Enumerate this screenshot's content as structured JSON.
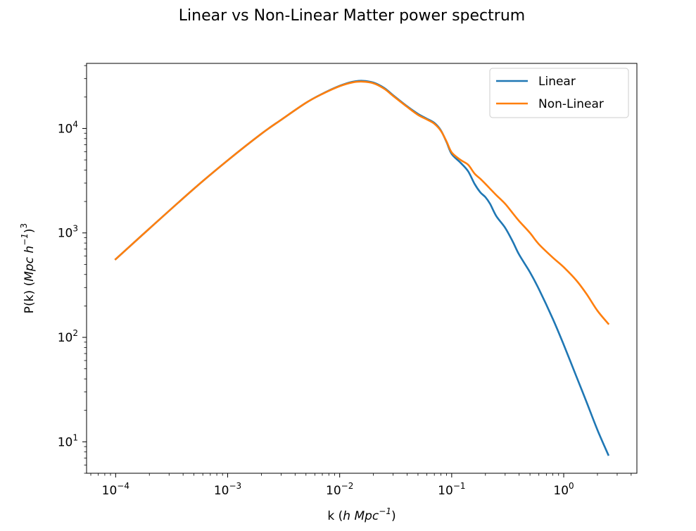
{
  "chart_data": {
    "type": "line",
    "title": "Linear vs Non-Linear Matter power spectrum",
    "xlabel": {
      "prefix": "k (",
      "var": "h Mpc",
      "sup": "−1",
      "suffix": ")"
    },
    "ylabel": {
      "prefix": "P(k) (",
      "var": "Mpc h",
      "sup1": "−1",
      "mid": ")",
      "sup2": "3"
    },
    "x_scale": "log",
    "y_scale": "log",
    "xlim": [
      5.5e-05,
      4.5
    ],
    "ylim": [
      5.0,
      42000
    ],
    "x_ticks": [
      {
        "base": "10",
        "exp": "−4",
        "value": 0.0001
      },
      {
        "base": "10",
        "exp": "−3",
        "value": 0.001
      },
      {
        "base": "10",
        "exp": "−2",
        "value": 0.01
      },
      {
        "base": "10",
        "exp": "−1",
        "value": 0.1
      },
      {
        "base": "10",
        "exp": "0",
        "value": 1
      }
    ],
    "y_ticks": [
      {
        "base": "10",
        "exp": "1",
        "value": 10
      },
      {
        "base": "10",
        "exp": "2",
        "value": 100
      },
      {
        "base": "10",
        "exp": "3",
        "value": 1000
      },
      {
        "base": "10",
        "exp": "4",
        "value": 10000
      }
    ],
    "grid": false,
    "legend_position": "top-right",
    "series": [
      {
        "name": "Linear",
        "color": "#1f77b4",
        "x": [
          0.0001,
          0.0002,
          0.0005,
          0.001,
          0.002,
          0.003,
          0.005,
          0.007,
          0.01,
          0.013,
          0.016,
          0.02,
          0.025,
          0.03,
          0.04,
          0.05,
          0.06,
          0.07,
          0.08,
          0.09,
          0.1,
          0.12,
          0.14,
          0.16,
          0.18,
          0.2,
          0.22,
          0.25,
          0.3,
          0.35,
          0.4,
          0.5,
          0.6,
          0.8,
          1.0,
          1.3,
          1.6,
          2.0,
          2.5
        ],
        "y": [
          560,
          1100,
          2650,
          4950,
          8900,
          12100,
          17600,
          21500,
          25600,
          28000,
          28600,
          27500,
          24400,
          20800,
          16300,
          13800,
          12400,
          11300,
          9600,
          7400,
          5700,
          4700,
          3900,
          2950,
          2450,
          2200,
          1900,
          1450,
          1120,
          830,
          620,
          420,
          290,
          150,
          85,
          42,
          24,
          13,
          7.5
        ]
      },
      {
        "name": "Non-Linear",
        "color": "#ff7f0e",
        "x": [
          0.0001,
          0.0002,
          0.0005,
          0.001,
          0.002,
          0.003,
          0.005,
          0.007,
          0.01,
          0.013,
          0.016,
          0.02,
          0.025,
          0.03,
          0.04,
          0.05,
          0.06,
          0.07,
          0.08,
          0.09,
          0.1,
          0.12,
          0.14,
          0.16,
          0.18,
          0.2,
          0.22,
          0.25,
          0.3,
          0.35,
          0.4,
          0.5,
          0.6,
          0.8,
          1.0,
          1.3,
          1.6,
          2.0,
          2.5
        ],
        "y": [
          560,
          1100,
          2650,
          4950,
          8900,
          12100,
          17600,
          21400,
          25400,
          27600,
          28100,
          27100,
          24000,
          20500,
          16100,
          13500,
          12200,
          11100,
          9500,
          7500,
          5900,
          5000,
          4500,
          3700,
          3300,
          2950,
          2650,
          2300,
          1900,
          1550,
          1300,
          1000,
          780,
          580,
          470,
          350,
          260,
          180,
          135
        ]
      }
    ]
  }
}
